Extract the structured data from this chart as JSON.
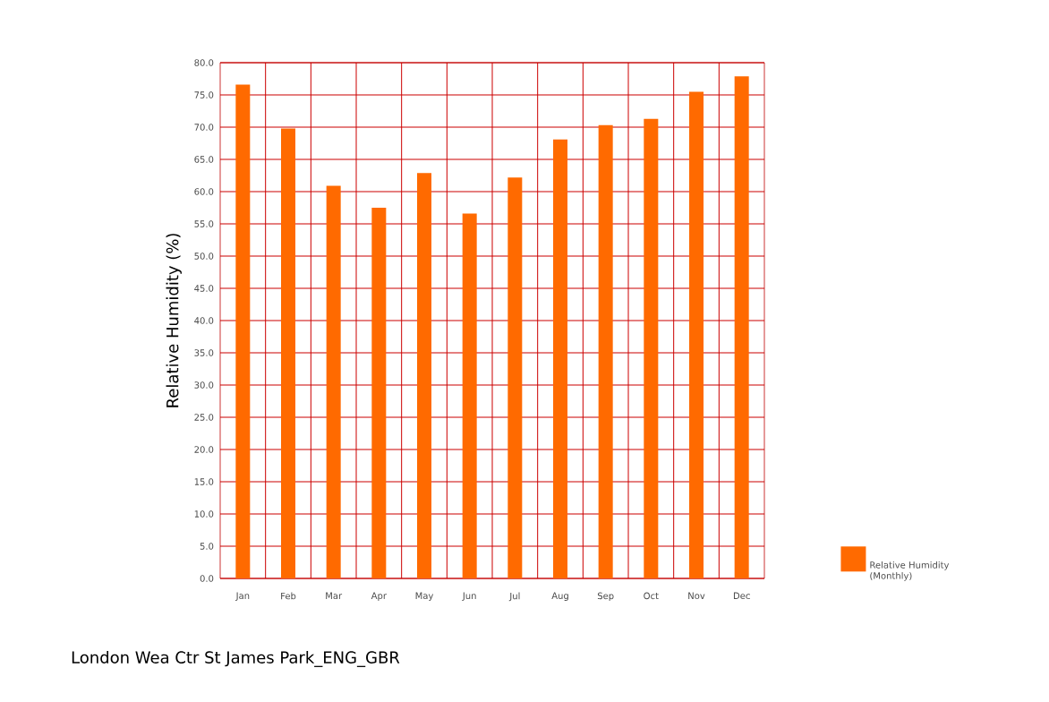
{
  "chart_data": {
    "type": "bar",
    "ylabel": "Relative Humidity (%)",
    "annotations": [
      "London Wea Ctr St James Park_ENG_GBR"
    ],
    "categories": [
      "Jan",
      "Feb",
      "Mar",
      "Apr",
      "May",
      "Jun",
      "Jul",
      "Aug",
      "Sep",
      "Oct",
      "Nov",
      "Dec"
    ],
    "series": [
      {
        "name": "Relative Humidity (Monthly)",
        "color": "#ff6a00",
        "values": [
          76.6,
          69.8,
          60.9,
          57.5,
          62.9,
          56.6,
          62.2,
          68.1,
          70.3,
          71.3,
          75.5,
          77.9
        ]
      }
    ],
    "ylim": [
      0,
      80
    ],
    "yticks": [
      {
        "value": 0,
        "label": "0.0"
      },
      {
        "value": 5,
        "label": "5.0"
      },
      {
        "value": 10,
        "label": "10.0"
      },
      {
        "value": 15,
        "label": "15.0"
      },
      {
        "value": 20,
        "label": "20.0"
      },
      {
        "value": 25,
        "label": "25.0"
      },
      {
        "value": 30,
        "label": "30.0"
      },
      {
        "value": 35,
        "label": "35.0"
      },
      {
        "value": 40,
        "label": "40.0"
      },
      {
        "value": 45,
        "label": "45.0"
      },
      {
        "value": 50,
        "label": "50.0"
      },
      {
        "value": 55,
        "label": "55.0"
      },
      {
        "value": 60,
        "label": "60.0"
      },
      {
        "value": 65,
        "label": "65.0"
      },
      {
        "value": 70,
        "label": "70.0"
      },
      {
        "value": 75,
        "label": "75.0"
      },
      {
        "value": 80,
        "label": "80.0"
      }
    ],
    "grid": true,
    "legend": "bottom right"
  }
}
